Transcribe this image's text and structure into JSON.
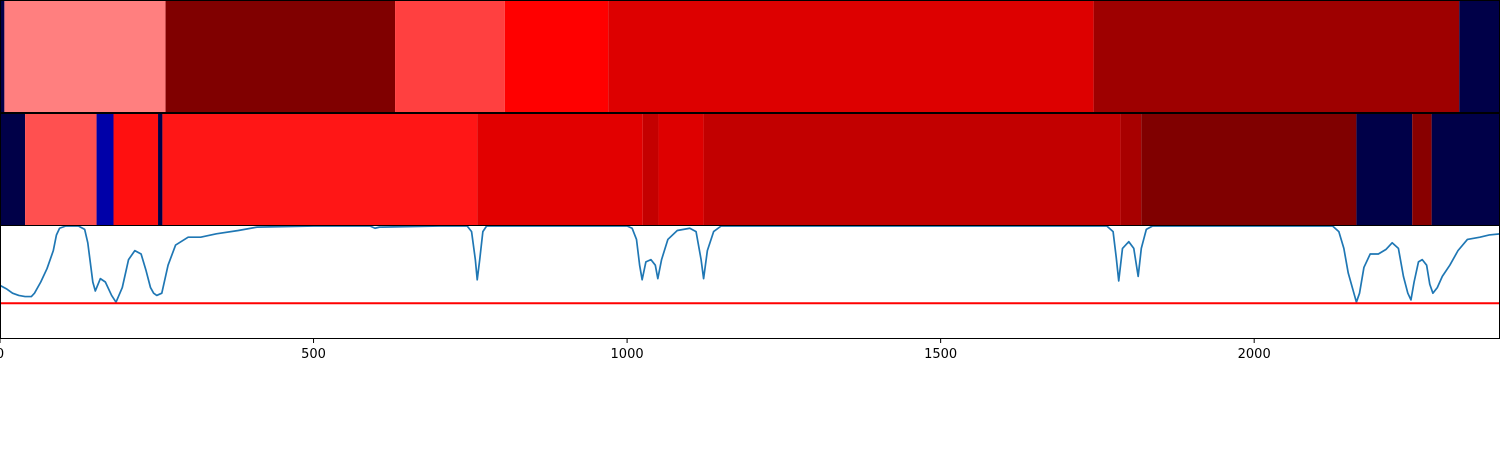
{
  "chart_data": [
    {
      "type": "heatmap",
      "x_range": [
        0,
        2392
      ],
      "colors": {
        "dark_navy": "#000048",
        "dark_red": "#800000",
        "red": "#ff0000"
      },
      "segments": [
        {
          "start": 0,
          "end": 7,
          "color": "#000048"
        },
        {
          "start": 7,
          "end": 264,
          "color": "#ff7f7f"
        },
        {
          "start": 264,
          "end": 630,
          "color": "#800000"
        },
        {
          "start": 630,
          "end": 805,
          "color": "#ff4040"
        },
        {
          "start": 805,
          "end": 970,
          "color": "#ff0000"
        },
        {
          "start": 970,
          "end": 1744,
          "color": "#dd0000"
        },
        {
          "start": 1744,
          "end": 2327,
          "color": "#9e0000"
        },
        {
          "start": 2327,
          "end": 2392,
          "color": "#000048"
        }
      ]
    },
    {
      "type": "heatmap",
      "x_range": [
        0,
        2392
      ],
      "segments": [
        {
          "start": 0,
          "end": 40,
          "color": "#000048"
        },
        {
          "start": 40,
          "end": 154,
          "color": "#ff5050"
        },
        {
          "start": 154,
          "end": 181,
          "color": "#0000a8"
        },
        {
          "start": 181,
          "end": 252,
          "color": "#ff1010"
        },
        {
          "start": 252,
          "end": 259,
          "color": "#000048"
        },
        {
          "start": 259,
          "end": 761,
          "color": "#ff1616"
        },
        {
          "start": 761,
          "end": 1025,
          "color": "#e20000"
        },
        {
          "start": 1025,
          "end": 1050,
          "color": "#c40000"
        },
        {
          "start": 1050,
          "end": 1122,
          "color": "#de0000"
        },
        {
          "start": 1122,
          "end": 1787,
          "color": "#c20000"
        },
        {
          "start": 1787,
          "end": 1820,
          "color": "#a80000"
        },
        {
          "start": 1820,
          "end": 2163,
          "color": "#800000"
        },
        {
          "start": 2163,
          "end": 2252,
          "color": "#000048"
        },
        {
          "start": 2252,
          "end": 2283,
          "color": "#880000"
        },
        {
          "start": 2283,
          "end": 2392,
          "color": "#000048"
        }
      ]
    },
    {
      "type": "line",
      "x_range": [
        0,
        2392
      ],
      "ylim": [
        0,
        1
      ],
      "xticks": [
        0,
        500,
        1000,
        1500,
        2000
      ],
      "series": [
        {
          "color": "#1f77b4",
          "points": [
            [
              0,
              0.47
            ],
            [
              10,
              0.44
            ],
            [
              20,
              0.4
            ],
            [
              30,
              0.38
            ],
            [
              40,
              0.37
            ],
            [
              50,
              0.37
            ],
            [
              55,
              0.4
            ],
            [
              65,
              0.5
            ],
            [
              75,
              0.62
            ],
            [
              85,
              0.78
            ],
            [
              90,
              0.92
            ],
            [
              95,
              0.98
            ],
            [
              105,
              1.0
            ],
            [
              125,
              1.0
            ],
            [
              135,
              0.97
            ],
            [
              140,
              0.85
            ],
            [
              148,
              0.5
            ],
            [
              152,
              0.42
            ],
            [
              160,
              0.53
            ],
            [
              168,
              0.5
            ],
            [
              178,
              0.38
            ],
            [
              185,
              0.32
            ],
            [
              195,
              0.45
            ],
            [
              205,
              0.7
            ],
            [
              215,
              0.78
            ],
            [
              225,
              0.75
            ],
            [
              233,
              0.6
            ],
            [
              240,
              0.45
            ],
            [
              245,
              0.4
            ],
            [
              250,
              0.38
            ],
            [
              258,
              0.4
            ],
            [
              268,
              0.65
            ],
            [
              280,
              0.83
            ],
            [
              300,
              0.9
            ],
            [
              320,
              0.9
            ],
            [
              345,
              0.93
            ],
            [
              380,
              0.96
            ],
            [
              410,
              0.99
            ],
            [
              500,
              1.0
            ],
            [
              590,
              1.0
            ],
            [
              598,
              0.98
            ],
            [
              605,
              0.99
            ],
            [
              700,
              1.0
            ],
            [
              745,
              1.0
            ],
            [
              752,
              0.95
            ],
            [
              758,
              0.7
            ],
            [
              761,
              0.52
            ],
            [
              765,
              0.7
            ],
            [
              770,
              0.95
            ],
            [
              776,
              1.0
            ],
            [
              1000,
              1.0
            ],
            [
              1008,
              0.98
            ],
            [
              1015,
              0.88
            ],
            [
              1020,
              0.65
            ],
            [
              1024,
              0.52
            ],
            [
              1030,
              0.68
            ],
            [
              1038,
              0.7
            ],
            [
              1045,
              0.65
            ],
            [
              1049,
              0.53
            ],
            [
              1055,
              0.7
            ],
            [
              1065,
              0.88
            ],
            [
              1080,
              0.96
            ],
            [
              1100,
              0.98
            ],
            [
              1110,
              0.95
            ],
            [
              1118,
              0.7
            ],
            [
              1122,
              0.53
            ],
            [
              1128,
              0.78
            ],
            [
              1138,
              0.95
            ],
            [
              1150,
              1.0
            ],
            [
              1400,
              1.0
            ],
            [
              1700,
              1.0
            ],
            [
              1765,
              1.0
            ],
            [
              1775,
              0.95
            ],
            [
              1780,
              0.72
            ],
            [
              1784,
              0.51
            ],
            [
              1790,
              0.8
            ],
            [
              1800,
              0.86
            ],
            [
              1808,
              0.8
            ],
            [
              1815,
              0.55
            ],
            [
              1820,
              0.8
            ],
            [
              1828,
              0.97
            ],
            [
              1838,
              1.0
            ],
            [
              2100,
              1.0
            ],
            [
              2125,
              1.0
            ],
            [
              2135,
              0.95
            ],
            [
              2143,
              0.8
            ],
            [
              2150,
              0.58
            ],
            [
              2160,
              0.38
            ],
            [
              2163,
              0.32
            ],
            [
              2168,
              0.4
            ],
            [
              2175,
              0.63
            ],
            [
              2185,
              0.75
            ],
            [
              2198,
              0.75
            ],
            [
              2210,
              0.79
            ],
            [
              2220,
              0.85
            ],
            [
              2230,
              0.8
            ],
            [
              2238,
              0.55
            ],
            [
              2245,
              0.4
            ],
            [
              2250,
              0.34
            ],
            [
              2255,
              0.5
            ],
            [
              2262,
              0.68
            ],
            [
              2268,
              0.7
            ],
            [
              2275,
              0.65
            ],
            [
              2280,
              0.48
            ],
            [
              2285,
              0.4
            ],
            [
              2292,
              0.45
            ],
            [
              2300,
              0.55
            ],
            [
              2312,
              0.65
            ],
            [
              2325,
              0.78
            ],
            [
              2340,
              0.88
            ],
            [
              2360,
              0.9
            ],
            [
              2375,
              0.92
            ],
            [
              2392,
              0.93
            ]
          ]
        },
        {
          "color": "#ff0000",
          "points": [
            [
              0,
              0.31
            ],
            [
              2392,
              0.31
            ]
          ]
        }
      ]
    }
  ]
}
